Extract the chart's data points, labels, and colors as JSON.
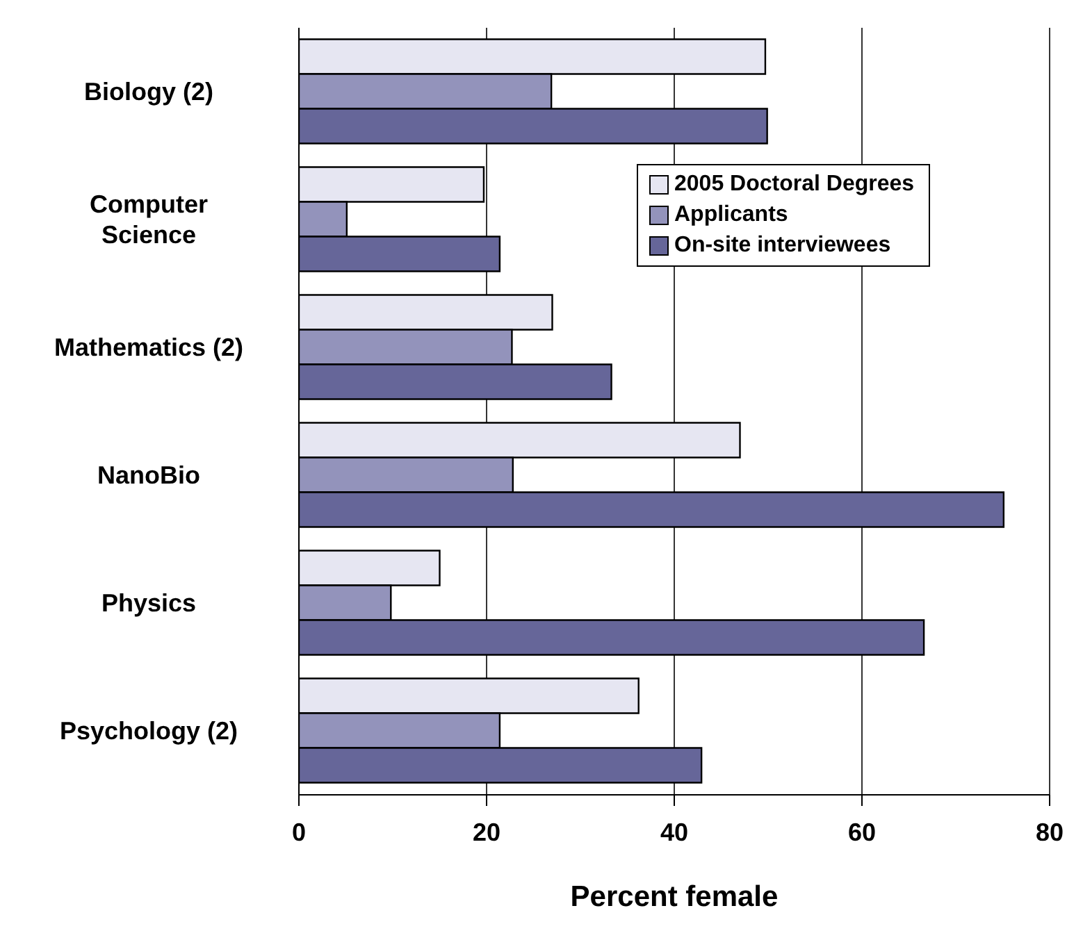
{
  "chart_data": {
    "type": "bar",
    "orientation": "horizontal",
    "xlabel": "Percent female",
    "categories": [
      "Biology (2)",
      "Computer Science",
      "Mathematics (2)",
      "NanoBio",
      "Physics",
      "Psychology (2)"
    ],
    "series": [
      {
        "name": "2005 Doctoral Degrees",
        "color": "#e6e6f2",
        "values": [
          49.7,
          19.7,
          27.0,
          47.0,
          15.0,
          36.2
        ]
      },
      {
        "name": "Applicants",
        "color": "#9393bb",
        "values": [
          26.9,
          5.1,
          22.7,
          22.8,
          9.8,
          21.4
        ]
      },
      {
        "name": "On-site interviewees",
        "color": "#666699",
        "values": [
          49.9,
          21.4,
          33.3,
          75.1,
          66.6,
          42.9
        ]
      }
    ],
    "xlim": [
      0,
      80
    ],
    "xticks": [
      0,
      20,
      40,
      60,
      80
    ],
    "grid": "x",
    "legend": "top right"
  }
}
